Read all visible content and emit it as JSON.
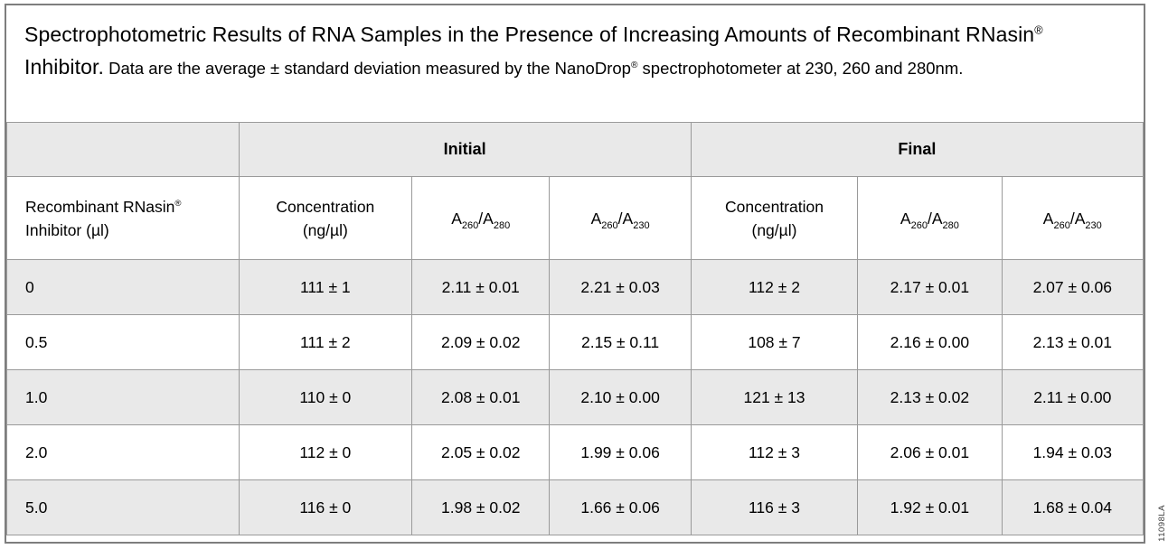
{
  "caption": {
    "title_pre": "Spectrophotometric Results of RNA Samples in the Presence of Increasing Amounts of Recombinant RNasin",
    "reg_mark": "®",
    "title_post": " Inhibitor.",
    "desc_pre": " Data are the average ± standard deviation measured by the NanoDrop",
    "desc_post": " spectrophotometer at 230, 260 and 280nm."
  },
  "table": {
    "group_headers": {
      "initial": "Initial",
      "final": "Final"
    },
    "columns": {
      "inhibitor_line1": "Recombinant RNasin",
      "inhibitor_reg": "®",
      "inhibitor_line2": "Inhibitor (µl)",
      "concentration_line1": "Concentration",
      "concentration_line2": "(ng/µl)",
      "ratio_280": {
        "a1": "A",
        "s1": "260",
        "slash": "/",
        "a2": "A",
        "s2": "280"
      },
      "ratio_230": {
        "a1": "A",
        "s1": "260",
        "slash": "/",
        "a2": "A",
        "s2": "230"
      }
    },
    "rows": [
      [
        "0",
        "111 ± 1",
        "2.11 ± 0.01",
        "2.21 ± 0.03",
        "112 ± 2",
        "2.17 ± 0.01",
        "2.07 ± 0.06"
      ],
      [
        "0.5",
        "111 ± 2",
        "2.09 ± 0.02",
        "2.15 ± 0.11",
        "108 ± 7",
        "2.16 ± 0.00",
        "2.13 ± 0.01"
      ],
      [
        "1.0",
        "110 ± 0",
        "2.08 ± 0.01",
        "2.10 ± 0.00",
        "121 ± 13",
        "2.13 ± 0.02",
        "2.11 ± 0.00"
      ],
      [
        "2.0",
        "112 ± 0",
        "2.05 ± 0.02",
        "1.99 ± 0.06",
        "112 ± 3",
        "2.06 ± 0.01",
        "1.94 ± 0.03"
      ],
      [
        "5.0",
        "116 ± 0",
        "1.98 ± 0.02",
        "1.66 ± 0.06",
        "116 ± 3",
        "1.92 ± 0.01",
        "1.68 ± 0.04"
      ]
    ]
  },
  "figure_code": "11098LA"
}
